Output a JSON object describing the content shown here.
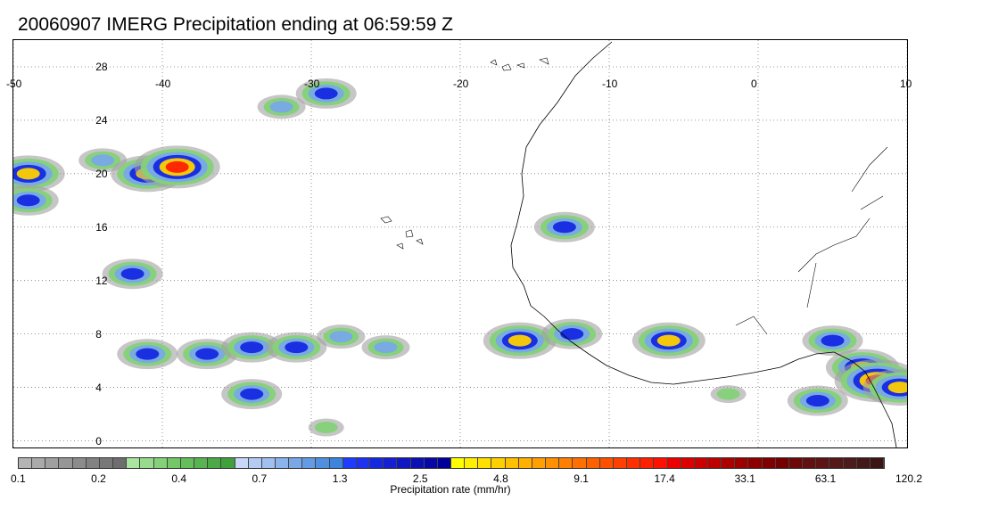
{
  "title": "20060907 IMERG Precipitation ending at 06:59:59 Z",
  "map": {
    "lon_range": [
      -50,
      10
    ],
    "lat_range": [
      -0.5,
      30
    ],
    "lon_ticks": [
      -50,
      -40,
      -30,
      -20,
      -10,
      0,
      10
    ],
    "lat_ticks": [
      0,
      4,
      8,
      12,
      16,
      20,
      24,
      28
    ],
    "lon_labels": [
      "-50",
      "-40",
      "-30",
      "-20",
      "-10",
      "0",
      "10"
    ],
    "lat_labels": [
      "0",
      "4",
      "8",
      "12",
      "16",
      "20",
      "24",
      "28"
    ],
    "gridlines": "dotted"
  },
  "colorbar": {
    "title": "Precipitation rate (mm/hr)",
    "labels": [
      "0.1",
      "0.2",
      "0.4",
      "0.7",
      "1.3",
      "2.5",
      "4.8",
      "9.1",
      "17.4",
      "33.1",
      "63.1",
      "120.2"
    ],
    "colors": [
      "#b4b4b4",
      "#aaaaaa",
      "#a0a0a0",
      "#969696",
      "#8c8c8c",
      "#828282",
      "#787878",
      "#6e6e6e",
      "#a8e6a0",
      "#96dc8c",
      "#84d278",
      "#72c864",
      "#64be5a",
      "#58b450",
      "#4caa46",
      "#40a03c",
      "#c8d8f8",
      "#b4ccf4",
      "#a0c0f0",
      "#8cb4ec",
      "#78a8e8",
      "#649ce4",
      "#5090e0",
      "#3c84dc",
      "#1e3cff",
      "#1e32f0",
      "#1428e0",
      "#1420d2",
      "#1018c4",
      "#0c10b4",
      "#0808a8",
      "#00009a",
      "#ffff00",
      "#fff000",
      "#ffe000",
      "#ffd000",
      "#ffc000",
      "#ffb000",
      "#ffa000",
      "#ff9000",
      "#ff8000",
      "#ff7000",
      "#ff6000",
      "#ff5000",
      "#ff4000",
      "#ff3000",
      "#ff2000",
      "#ff1000",
      "#ec0000",
      "#dc0000",
      "#cc0000",
      "#bc0000",
      "#ac0000",
      "#9c0000",
      "#8c0000",
      "#800000",
      "#740000",
      "#6c0808",
      "#641010",
      "#5c1414",
      "#541818",
      "#4c1c1c",
      "#441818",
      "#3c1414"
    ]
  },
  "rain_cells": [
    {
      "lon": -29,
      "lat": 26,
      "intensity": 3
    },
    {
      "lon": -32,
      "lat": 25,
      "intensity": 2
    },
    {
      "lon": -44,
      "lat": 21,
      "intensity": 2
    },
    {
      "lon": -41,
      "lat": 20,
      "intensity": 4
    },
    {
      "lon": -39,
      "lat": 20.5,
      "intensity": 5
    },
    {
      "lon": -49,
      "lat": 20,
      "intensity": 4
    },
    {
      "lon": -49,
      "lat": 18,
      "intensity": 3
    },
    {
      "lon": -42,
      "lat": 12.5,
      "intensity": 3
    },
    {
      "lon": -13,
      "lat": 16,
      "intensity": 3
    },
    {
      "lon": -41,
      "lat": 6.5,
      "intensity": 3
    },
    {
      "lon": -37,
      "lat": 6.5,
      "intensity": 3
    },
    {
      "lon": -34,
      "lat": 7,
      "intensity": 3
    },
    {
      "lon": -31,
      "lat": 7,
      "intensity": 3
    },
    {
      "lon": -34,
      "lat": 3.5,
      "intensity": 3
    },
    {
      "lon": -28,
      "lat": 7.8,
      "intensity": 2
    },
    {
      "lon": -25,
      "lat": 7,
      "intensity": 2
    },
    {
      "lon": -16,
      "lat": 7.5,
      "intensity": 4
    },
    {
      "lon": -12.5,
      "lat": 8,
      "intensity": 3
    },
    {
      "lon": -6,
      "lat": 7.5,
      "intensity": 4
    },
    {
      "lon": 5,
      "lat": 7.5,
      "intensity": 3
    },
    {
      "lon": 7,
      "lat": 5.5,
      "intensity": 4
    },
    {
      "lon": 8,
      "lat": 4.5,
      "intensity": 5
    },
    {
      "lon": 9.5,
      "lat": 4,
      "intensity": 4
    },
    {
      "lon": 4,
      "lat": 3,
      "intensity": 3
    },
    {
      "lon": -2,
      "lat": 3.5,
      "intensity": 1
    },
    {
      "lon": -29,
      "lat": 1,
      "intensity": 1
    }
  ]
}
